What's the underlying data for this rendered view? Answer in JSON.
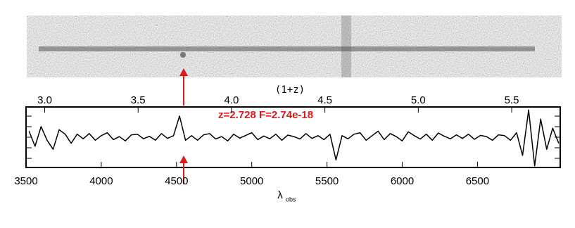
{
  "chart_data": {
    "type": "line",
    "x": [
      3520,
      3560,
      3600,
      3640,
      3680,
      3720,
      3760,
      3800,
      3840,
      3880,
      3920,
      3960,
      4000,
      4040,
      4080,
      4120,
      4160,
      4200,
      4240,
      4280,
      4320,
      4360,
      4400,
      4440,
      4480,
      4520,
      4560,
      4600,
      4640,
      4680,
      4720,
      4760,
      4800,
      4840,
      4880,
      4920,
      4960,
      5000,
      5040,
      5080,
      5120,
      5160,
      5200,
      5240,
      5280,
      5320,
      5360,
      5400,
      5440,
      5480,
      5520,
      5560,
      5600,
      5640,
      5680,
      5720,
      5760,
      5800,
      5840,
      5880,
      5920,
      5960,
      6000,
      6040,
      6080,
      6120,
      6160,
      6200,
      6240,
      6280,
      6320,
      6360,
      6400,
      6440,
      6480,
      6520,
      6560,
      6600,
      6640,
      6680,
      6720,
      6760,
      6800,
      6840,
      6880,
      6920,
      6960,
      7000,
      7040
    ],
    "values": [
      0.2,
      -0.3,
      0.35,
      -0.1,
      -0.4,
      0.25,
      0.1,
      -0.2,
      0.1,
      -0.05,
      0.12,
      -0.1,
      0.05,
      0.15,
      -0.08,
      0.02,
      -0.12,
      0.08,
      0.1,
      -0.05,
      0.03,
      -0.1,
      0.12,
      -0.04,
      0.05,
      0.7,
      -0.1,
      0.05,
      -0.1,
      0.08,
      0.12,
      -0.06,
      0.02,
      -0.12,
      0.1,
      -0.03,
      0.06,
      0.15,
      -0.08,
      0.04,
      -0.05,
      0.1,
      -0.1,
      0.07,
      0.02,
      -0.06,
      0.12,
      -0.04,
      0.05,
      -0.08,
      0.1,
      -0.75,
      0.05,
      -0.05,
      0.1,
      0.15,
      -0.1,
      0.05,
      0.2,
      -0.08,
      0.12,
      0.02,
      -0.12,
      0.18,
      0.05,
      -0.06,
      0.1,
      -0.1,
      0.14,
      0.03,
      -0.05,
      0.08,
      -0.04,
      0.1,
      -0.07,
      0.06,
      0.02,
      -0.1,
      0.08,
      0.05,
      -0.1,
      0.15,
      -0.6,
      0.9,
      -0.95,
      0.6,
      -0.4,
      0.3,
      -0.2
    ],
    "color": "#000000",
    "xlim": [
      3500,
      7050
    ],
    "xticks": [
      3500,
      4000,
      4500,
      5000,
      5500,
      6000,
      6500
    ],
    "ylim": [
      -1,
      1
    ],
    "x2lim": [
      2.9,
      5.76
    ],
    "x2ticks": [
      {
        "value": 3,
        "label": "3.0"
      },
      {
        "value": 3.5,
        "label": "3.5"
      },
      {
        "value": 4,
        "label": "4.0"
      },
      {
        "value": 4.5,
        "label": "4.5"
      },
      {
        "value": 5,
        "label": "5.0"
      },
      {
        "value": 5.5,
        "label": "5.5"
      }
    ],
    "x2label": "(1+z)",
    "xlabel": "λ",
    "xlabel_subscript": "obs",
    "annotation": "z=2.728  F=2.74e-18"
  }
}
